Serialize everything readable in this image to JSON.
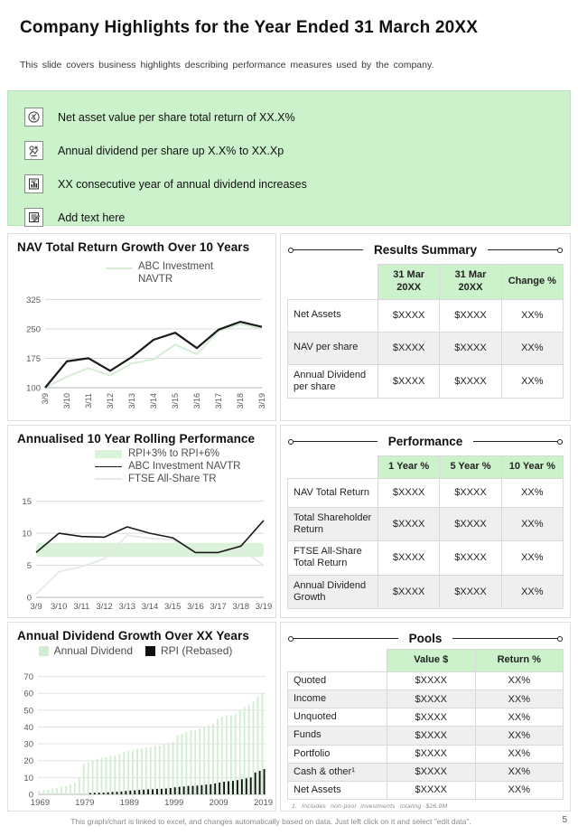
{
  "slide": {
    "title": "Company Highlights for the Year Ended 31 March 20XX",
    "subtitle": "This slide covers business highlights describing performance measures used by the company.",
    "footer_note": "This graph/chart is linked to excel, and changes automatically based on data. Just left click on it and select \"edit data\".",
    "page_number": "5"
  },
  "highlights": {
    "background": "#cbf2cb",
    "items": [
      {
        "icon": "money-plant-icon",
        "text": "Net asset value per share total return of XX.X%"
      },
      {
        "icon": "dividend-growth-icon",
        "text": "Annual dividend per share up X.X% to XX.Xp"
      },
      {
        "icon": "chart-document-icon",
        "text": "XX consecutive year of annual dividend increases"
      },
      {
        "icon": "edit-note-icon",
        "text": "Add text here"
      }
    ]
  },
  "chart_data": [
    {
      "type": "line",
      "title": "NAV Total Return Growth Over 10 Years",
      "x": [
        "3/9",
        "3/10",
        "3/11",
        "3/12",
        "3/13",
        "3/14",
        "3/15",
        "3/16",
        "3/17",
        "3/18",
        "3/19"
      ],
      "x_rotate": true,
      "yticks": [
        100,
        175,
        250,
        325
      ],
      "ylim": [
        100,
        335
      ],
      "grid": true,
      "legend_position": "top-right",
      "series": [
        {
          "name": "ABC Investment NAVTR",
          "color": "#d6ecd6",
          "width": 2,
          "values": [
            100,
            128,
            150,
            131,
            162,
            172,
            210,
            185,
            245,
            262,
            250
          ]
        },
        {
          "name": "",
          "color": "#1a1a1a",
          "width": 2.2,
          "values": [
            100,
            167,
            175,
            143,
            178,
            222,
            240,
            201,
            248,
            268,
            255
          ]
        }
      ]
    },
    {
      "type": "line",
      "title": "Annualised 10 Year Rolling Performance",
      "x": [
        "3/9",
        "3/10",
        "3/11",
        "3/12",
        "3/13",
        "3/14",
        "3/15",
        "3/16",
        "3/17",
        "3/18",
        "3/19"
      ],
      "x_rotate": false,
      "yticks": [
        0,
        5,
        10,
        15
      ],
      "ylim": [
        0,
        15.8
      ],
      "grid": true,
      "legend_position": "top-center",
      "band": {
        "label": "RPI+3% to RPI+6%",
        "from": 6.3,
        "to": 8.5,
        "color": "#d9f2d9"
      },
      "series": [
        {
          "name": "FTSE All-Share TR",
          "color": "#e4eae4",
          "width": 1.8,
          "values": [
            0.5,
            4,
            4.8,
            6,
            9.7,
            9.2,
            9,
            7,
            7,
            7.5,
            5
          ]
        },
        {
          "name": "ABC Investment NAVTR",
          "color": "#1a1a1a",
          "width": 1.6,
          "values": [
            7,
            10,
            9.5,
            9.4,
            11,
            10,
            9.3,
            7,
            7,
            8,
            12
          ]
        }
      ]
    },
    {
      "type": "bar",
      "title": "Annual Dividend Growth Over XX Years",
      "xticks": [
        "1969",
        "1979",
        "1989",
        "1999",
        "2009",
        "2019"
      ],
      "xtick_idx": [
        0,
        10,
        20,
        30,
        40,
        50
      ],
      "yticks": [
        0,
        10,
        20,
        30,
        40,
        50,
        60,
        70
      ],
      "ylim": [
        0,
        73
      ],
      "grid": true,
      "legend_position": "top-center",
      "series": [
        {
          "name": "Annual Dividend",
          "color": "#d2eed2",
          "values": [
            2,
            2.5,
            3,
            3.5,
            4,
            4.5,
            5,
            6,
            7,
            10,
            18,
            19,
            20,
            21,
            22,
            22,
            23,
            23,
            24,
            25,
            26,
            26,
            27,
            27,
            28,
            28,
            29,
            29,
            30,
            30,
            31,
            35,
            36,
            37,
            38,
            38,
            39,
            40,
            41,
            42,
            45,
            46,
            47,
            47,
            48,
            50,
            52,
            53,
            55,
            58,
            60
          ]
        },
        {
          "name": "RPI (Rebased)",
          "color": "#111111",
          "values": [
            0,
            0,
            0,
            0,
            0,
            0,
            0,
            0,
            0,
            0,
            0,
            0.8,
            0.9,
            1,
            1,
            1.2,
            1.4,
            1.5,
            1.7,
            2,
            2.2,
            2.4,
            2.6,
            2.8,
            3,
            3,
            3.2,
            3.3,
            3.5,
            3.8,
            4.2,
            4.5,
            4.7,
            5,
            5,
            5.2,
            5.5,
            5.8,
            6,
            6.5,
            7,
            7.5,
            7.8,
            8,
            8.5,
            9,
            9.5,
            10,
            13,
            14,
            15
          ]
        }
      ]
    }
  ],
  "tables": {
    "results": {
      "title": "Results Summary",
      "columns": [
        "31 Mar 20XX",
        "31 Mar 20XX",
        "Change %"
      ],
      "rows": [
        {
          "label": "Net Assets",
          "cells": [
            "$XXXX",
            "$XXXX",
            "XX%"
          ]
        },
        {
          "label": "NAV per share",
          "cells": [
            "$XXXX",
            "$XXXX",
            "XX%"
          ]
        },
        {
          "label": "Annual Dividend per share",
          "cells": [
            "$XXXX",
            "$XXXX",
            "XX%"
          ]
        }
      ]
    },
    "performance": {
      "title": "Performance",
      "columns": [
        "1 Year %",
        "5 Year %",
        "10 Year %"
      ],
      "rows": [
        {
          "label": "NAV Total Return",
          "cells": [
            "$XXXX",
            "$XXXX",
            "XX%"
          ]
        },
        {
          "label": "Total Shareholder Return",
          "cells": [
            "$XXXX",
            "$XXXX",
            "XX%"
          ]
        },
        {
          "label": "FTSE All-Share Total Return",
          "cells": [
            "$XXXX",
            "$XXXX",
            "XX%"
          ]
        },
        {
          "label": "Annual Dividend Growth",
          "cells": [
            "$XXXX",
            "$XXXX",
            "XX%"
          ]
        }
      ]
    },
    "pools": {
      "title": "Pools",
      "columns": [
        "Value $",
        "Return %"
      ],
      "rows": [
        {
          "label": "Quoted",
          "cells": [
            "$XXXX",
            "XX%"
          ]
        },
        {
          "label": "Income",
          "cells": [
            "$XXXX",
            "XX%"
          ]
        },
        {
          "label": "Unquoted",
          "cells": [
            "$XXXX",
            "XX%"
          ]
        },
        {
          "label": "Funds",
          "cells": [
            "$XXXX",
            "XX%"
          ]
        },
        {
          "label": "Portfolio",
          "cells": [
            "$XXXX",
            "XX%"
          ]
        },
        {
          "label": "Cash & other¹",
          "cells": [
            "$XXXX",
            "XX%"
          ]
        },
        {
          "label": "Net Assets",
          "cells": [
            "$XXXX",
            "XX%"
          ]
        }
      ],
      "footnote": "1. Includes non-pool investments totaling $26.9M"
    }
  },
  "colors": {
    "accent_green": "#cbf2cb",
    "chart_green_line": "#d6ecd6",
    "bar_green": "#d2eed2",
    "band_green": "#d9f2d9",
    "series_black": "#1a1a1a",
    "grid_gray": "#d9d9d9",
    "muted_text": "#595959"
  }
}
